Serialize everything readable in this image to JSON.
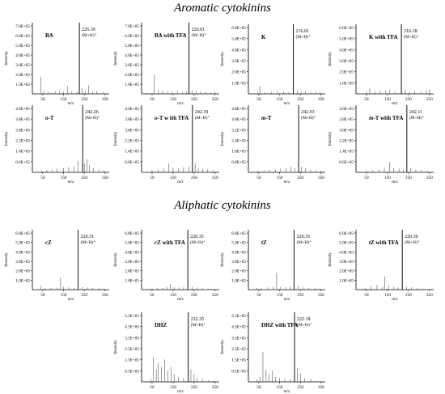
{
  "sections": {
    "aromatic_title": "Aromatic cytokinins",
    "aliphatic_title": "Aliphatic cytokinins"
  },
  "shared": {
    "ylabel": "Intensity",
    "xlabel": "m/z",
    "peak_note": "(M+H)⁺"
  },
  "chart_data": [
    {
      "type": "bar",
      "name": "BA",
      "title": "BA",
      "xlim": [
        0,
        370
      ],
      "xticks": [
        50,
        150,
        250,
        350
      ],
      "yticks": [
        "1.0E+05",
        "2.0E+05",
        "3.0E+05",
        "4.0E+05",
        "5.0E+05",
        "6.0E+05",
        "7.0E+05"
      ],
      "ylim": [
        0,
        750000
      ],
      "peak_label": "226.30",
      "peaks": [
        [
          40,
          180000
        ],
        [
          55,
          30000
        ],
        [
          75,
          20000
        ],
        [
          90,
          15000
        ],
        [
          110,
          25000
        ],
        [
          130,
          30000
        ],
        [
          150,
          20000
        ],
        [
          170,
          80000
        ],
        [
          190,
          25000
        ],
        [
          215,
          20000
        ],
        [
          226.3,
          750000
        ],
        [
          240,
          60000
        ],
        [
          255,
          30000
        ],
        [
          270,
          90000
        ],
        [
          290,
          25000
        ],
        [
          310,
          30000
        ],
        [
          340,
          20000
        ]
      ]
    },
    {
      "type": "bar",
      "name": "BA with TFA",
      "title": "BA with TFA",
      "xlim": [
        0,
        370
      ],
      "xticks": [
        50,
        150,
        250,
        350
      ],
      "yticks": [
        "1.0E+05",
        "2.0E+05",
        "3.0E+05",
        "4.0E+05",
        "5.0E+05",
        "6.0E+05",
        "7.0E+05"
      ],
      "ylim": [
        0,
        750000
      ],
      "peak_label": "226.01",
      "peaks": [
        [
          60,
          200000
        ],
        [
          80,
          40000
        ],
        [
          100,
          30000
        ],
        [
          125,
          25000
        ],
        [
          145,
          20000
        ],
        [
          170,
          30000
        ],
        [
          195,
          20000
        ],
        [
          215,
          25000
        ],
        [
          226,
          750000
        ],
        [
          240,
          40000
        ],
        [
          260,
          30000
        ],
        [
          280,
          25000
        ],
        [
          305,
          20000
        ],
        [
          330,
          15000
        ],
        [
          350,
          20000
        ]
      ]
    },
    {
      "type": "bar",
      "name": "K",
      "title": "K",
      "xlim": [
        0,
        370
      ],
      "xticks": [
        50,
        150,
        250,
        350
      ],
      "yticks": [
        "1.0E+05",
        "2.0E+05",
        "3.0E+05",
        "4.0E+05",
        "5.0E+05",
        "6.0E+05"
      ],
      "ylim": [
        0,
        640000
      ],
      "peak_label": "216.01",
      "peaks": [
        [
          45,
          20000
        ],
        [
          55,
          70000
        ],
        [
          80,
          15000
        ],
        [
          110,
          20000
        ],
        [
          140,
          25000
        ],
        [
          170,
          20000
        ],
        [
          195,
          15000
        ],
        [
          216,
          640000
        ],
        [
          235,
          30000
        ],
        [
          255,
          20000
        ],
        [
          275,
          25000
        ],
        [
          300,
          15000
        ],
        [
          325,
          20000
        ],
        [
          345,
          15000
        ]
      ]
    },
    {
      "type": "bar",
      "name": "K with TFA",
      "title": "K with TFA",
      "xlim": [
        0,
        370
      ],
      "xticks": [
        50,
        150,
        250,
        350
      ],
      "yticks": [
        "1.0E+05",
        "2.0E+05",
        "3.0E+05",
        "4.0E+05",
        "5.0E+05",
        "6.0E+05"
      ],
      "ylim": [
        0,
        640000
      ],
      "peak_label": "216.18",
      "peaks": [
        [
          50,
          20000
        ],
        [
          65,
          50000
        ],
        [
          90,
          20000
        ],
        [
          115,
          25000
        ],
        [
          140,
          30000
        ],
        [
          160,
          40000
        ],
        [
          185,
          20000
        ],
        [
          216.2,
          640000
        ],
        [
          235,
          40000
        ],
        [
          255,
          20000
        ],
        [
          280,
          25000
        ],
        [
          310,
          20000
        ],
        [
          335,
          30000
        ],
        [
          350,
          40000
        ]
      ]
    },
    {
      "type": "bar",
      "name": "o-T",
      "title": "o-T",
      "xlim": [
        0,
        370
      ],
      "xticks": [
        50,
        150,
        250,
        350
      ],
      "yticks": [
        "0.6E+05",
        "1.4E+05",
        "2.2E+05",
        "3.0E+05",
        "3.8E+05",
        "4.6E+05"
      ],
      "ylim": [
        0,
        460000
      ],
      "peak_label": "242.26",
      "peaks": [
        [
          45,
          10000
        ],
        [
          70,
          15000
        ],
        [
          95,
          20000
        ],
        [
          120,
          25000
        ],
        [
          150,
          30000
        ],
        [
          175,
          35000
        ],
        [
          200,
          40000
        ],
        [
          220,
          80000
        ],
        [
          242.3,
          460000
        ],
        [
          250,
          60000
        ],
        [
          262,
          90000
        ],
        [
          275,
          50000
        ],
        [
          295,
          30000
        ],
        [
          320,
          20000
        ],
        [
          345,
          15000
        ]
      ]
    },
    {
      "type": "bar",
      "name": "o-T with TFA",
      "title": "o-T w ith TFA",
      "xlim": [
        0,
        370
      ],
      "xticks": [
        50,
        150,
        250,
        350
      ],
      "yticks": [
        "0.6E+05",
        "1.4E+05",
        "2.2E+05",
        "3.0E+05",
        "3.8E+05",
        "4.6E+05"
      ],
      "ylim": [
        0,
        460000
      ],
      "peak_label": "242.19",
      "peaks": [
        [
          50,
          15000
        ],
        [
          80,
          20000
        ],
        [
          105,
          25000
        ],
        [
          130,
          60000
        ],
        [
          150,
          30000
        ],
        [
          175,
          25000
        ],
        [
          200,
          35000
        ],
        [
          225,
          40000
        ],
        [
          242.2,
          460000
        ],
        [
          255,
          60000
        ],
        [
          270,
          30000
        ],
        [
          290,
          25000
        ],
        [
          315,
          20000
        ],
        [
          340,
          15000
        ]
      ]
    },
    {
      "type": "bar",
      "name": "m-T",
      "title": "m-T",
      "xlim": [
        0,
        370
      ],
      "xticks": [
        50,
        150,
        250,
        350
      ],
      "yticks": [
        "0.8E+05",
        "1.6E+05",
        "2.4E+05",
        "3.2E+05",
        "4.0E+05",
        "4.8E+05"
      ],
      "ylim": [
        0,
        480000
      ],
      "peak_label": "242.03",
      "peaks": [
        [
          45,
          10000
        ],
        [
          75,
          15000
        ],
        [
          100,
          20000
        ],
        [
          130,
          20000
        ],
        [
          155,
          25000
        ],
        [
          180,
          30000
        ],
        [
          205,
          40000
        ],
        [
          225,
          30000
        ],
        [
          242,
          480000
        ],
        [
          255,
          40000
        ],
        [
          275,
          30000
        ],
        [
          300,
          20000
        ],
        [
          325,
          15000
        ],
        [
          350,
          10000
        ]
      ]
    },
    {
      "type": "bar",
      "name": "m-T with TFA",
      "title": "m-T with TFA",
      "xlim": [
        0,
        370
      ],
      "xticks": [
        50,
        150,
        250,
        350
      ],
      "yticks": [
        "0.6E+05",
        "1.4E+05",
        "2.2E+05",
        "3.0E+05",
        "3.8E+05",
        "4.6E+05"
      ],
      "ylim": [
        0,
        460000
      ],
      "peak_label": "242.11",
      "peaks": [
        [
          50,
          10000
        ],
        [
          80,
          15000
        ],
        [
          110,
          20000
        ],
        [
          135,
          30000
        ],
        [
          160,
          70000
        ],
        [
          180,
          30000
        ],
        [
          205,
          25000
        ],
        [
          225,
          20000
        ],
        [
          242.1,
          460000
        ],
        [
          260,
          30000
        ],
        [
          285,
          20000
        ],
        [
          310,
          15000
        ],
        [
          340,
          10000
        ]
      ]
    },
    {
      "type": "bar",
      "name": "cZ",
      "title": "cZ",
      "xlim": [
        0,
        370
      ],
      "xticks": [
        50,
        150,
        250,
        350
      ],
      "yticks": [
        "1.0E+05",
        "2.0E+05",
        "3.0E+05",
        "4.0E+05",
        "5.0E+05",
        "6.0E+05"
      ],
      "ylim": [
        0,
        640000
      ],
      "peak_label": "220.31",
      "peaks": [
        [
          40,
          40000
        ],
        [
          60,
          15000
        ],
        [
          90,
          20000
        ],
        [
          120,
          20000
        ],
        [
          136,
          130000
        ],
        [
          150,
          30000
        ],
        [
          175,
          25000
        ],
        [
          200,
          20000
        ],
        [
          220.3,
          640000
        ],
        [
          240,
          30000
        ],
        [
          265,
          25000
        ],
        [
          290,
          20000
        ],
        [
          320,
          15000
        ],
        [
          345,
          10000
        ]
      ]
    },
    {
      "type": "bar",
      "name": "cZ with TFA",
      "title": "cZ with TFA",
      "xlim": [
        0,
        370
      ],
      "xticks": [
        50,
        150,
        250,
        350
      ],
      "yticks": [
        "1.0E+05",
        "2.0E+05",
        "3.0E+05",
        "4.0E+05",
        "5.0E+05",
        "6.0E+05"
      ],
      "ylim": [
        0,
        640000
      ],
      "peak_label": "220.35",
      "peaks": [
        [
          45,
          10000
        ],
        [
          75,
          15000
        ],
        [
          100,
          20000
        ],
        [
          120,
          30000
        ],
        [
          136,
          60000
        ],
        [
          155,
          25000
        ],
        [
          180,
          20000
        ],
        [
          200,
          25000
        ],
        [
          220.3,
          640000
        ],
        [
          240,
          30000
        ],
        [
          265,
          20000
        ],
        [
          290,
          15000
        ],
        [
          320,
          10000
        ]
      ]
    },
    {
      "type": "bar",
      "name": "tZ",
      "title": "tZ",
      "xlim": [
        0,
        370
      ],
      "xticks": [
        50,
        150,
        250,
        350
      ],
      "yticks": [
        "1.0E+05",
        "2.0E+05",
        "3.0E+05",
        "4.0E+05",
        "5.0E+05",
        "6.0E+05"
      ],
      "ylim": [
        0,
        640000
      ],
      "peak_label": "220.35",
      "peaks": [
        [
          40,
          20000
        ],
        [
          60,
          15000
        ],
        [
          95,
          25000
        ],
        [
          120,
          30000
        ],
        [
          136,
          180000
        ],
        [
          155,
          30000
        ],
        [
          180,
          25000
        ],
        [
          200,
          30000
        ],
        [
          220.3,
          640000
        ],
        [
          240,
          40000
        ],
        [
          265,
          25000
        ],
        [
          290,
          20000
        ],
        [
          320,
          15000
        ],
        [
          345,
          10000
        ]
      ]
    },
    {
      "type": "bar",
      "name": "tZ with TFA",
      "title": "tZ with TFA",
      "xlim": [
        0,
        370
      ],
      "xticks": [
        50,
        150,
        250,
        350
      ],
      "yticks": [
        "1.0E+05",
        "2.0E+05",
        "3.0E+05",
        "4.0E+05",
        "5.0E+05",
        "6.0E+05"
      ],
      "ylim": [
        0,
        640000
      ],
      "peak_label": "220.36",
      "peaks": [
        [
          45,
          20000
        ],
        [
          70,
          40000
        ],
        [
          100,
          50000
        ],
        [
          125,
          30000
        ],
        [
          136,
          140000
        ],
        [
          155,
          40000
        ],
        [
          180,
          30000
        ],
        [
          200,
          25000
        ],
        [
          220.4,
          640000
        ],
        [
          240,
          30000
        ],
        [
          265,
          25000
        ],
        [
          290,
          15000
        ],
        [
          320,
          10000
        ]
      ]
    },
    {
      "type": "bar",
      "name": "DHZ",
      "title": "DHZ",
      "xlim": [
        0,
        370
      ],
      "xticks": [
        50,
        150,
        250,
        350
      ],
      "yticks": [
        "0.5E+05",
        "1.5E+05",
        "2.5E+05",
        "3.5E+05",
        "4.5E+05",
        "5.5E+05"
      ],
      "ylim": [
        0,
        560000
      ],
      "peak_label": "222.35",
      "peaks": [
        [
          45,
          20000
        ],
        [
          55,
          200000
        ],
        [
          70,
          100000
        ],
        [
          80,
          150000
        ],
        [
          95,
          120000
        ],
        [
          110,
          180000
        ],
        [
          125,
          90000
        ],
        [
          140,
          120000
        ],
        [
          155,
          60000
        ],
        [
          175,
          40000
        ],
        [
          200,
          30000
        ],
        [
          222.3,
          560000
        ],
        [
          235,
          100000
        ],
        [
          250,
          60000
        ],
        [
          265,
          30000
        ],
        [
          290,
          20000
        ],
        [
          320,
          15000
        ],
        [
          345,
          10000
        ]
      ]
    },
    {
      "type": "bar",
      "name": "DHZ with TFA",
      "title": "DHZ with TFA",
      "xlim": [
        0,
        370
      ],
      "xticks": [
        50,
        150,
        250,
        350
      ],
      "yticks": [
        "0.5E+05",
        "1.5E+05",
        "2.5E+05",
        "3.5E+05",
        "4.5E+05",
        "5.5E+05"
      ],
      "ylim": [
        0,
        560000
      ],
      "peak_label": "222.18",
      "peaks": [
        [
          40,
          20000
        ],
        [
          55,
          40000
        ],
        [
          70,
          240000
        ],
        [
          85,
          100000
        ],
        [
          100,
          60000
        ],
        [
          115,
          90000
        ],
        [
          130,
          40000
        ],
        [
          150,
          30000
        ],
        [
          175,
          25000
        ],
        [
          200,
          20000
        ],
        [
          222.2,
          560000
        ],
        [
          235,
          110000
        ],
        [
          250,
          70000
        ],
        [
          270,
          30000
        ],
        [
          300,
          20000
        ],
        [
          330,
          10000
        ]
      ]
    }
  ]
}
